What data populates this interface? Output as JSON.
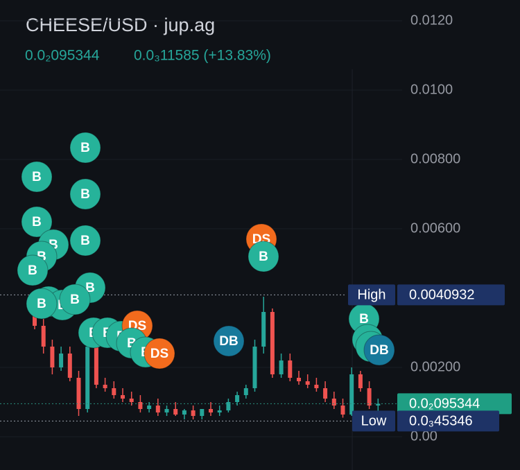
{
  "chart_data": {
    "type": "candlestick",
    "title": "CHEESE/USD · jup.ag",
    "price": "0.0₂095344",
    "change": "0.0₃11585 (+13.83%)",
    "ylim": [
      -0.00096,
      0.0126
    ],
    "yticks": [
      {
        "value": 0.012,
        "label": "0.0120"
      },
      {
        "value": 0.01,
        "label": "0.0100"
      },
      {
        "value": 0.008,
        "label": "0.00800"
      },
      {
        "value": 0.006,
        "label": "0.00600"
      },
      {
        "value": 0.002,
        "label": "0.00200"
      },
      {
        "value": 0,
        "label": "0.00"
      }
    ],
    "up_color": "#26a69a",
    "down_color": "#ef5350",
    "open": [
      0.0038,
      0.0032,
      0.0026,
      0.002,
      0.0024,
      0.0017,
      0.0008,
      0.0026,
      0.0015,
      0.0014,
      0.0012,
      0.0011,
      0.001,
      0.0008,
      0.0009,
      0.0007,
      0.0008,
      0.00064,
      0.00076,
      0.0006,
      0.0008,
      0.0007,
      0.00076,
      0.001,
      0.0012,
      0.0014,
      0.0026,
      0.0036,
      0.0018,
      0.0022,
      0.0017,
      0.0016,
      0.0015,
      0.0014,
      0.0011,
      0.0009,
      0.00064,
      0.0018,
      0.0014,
      0.0009
    ],
    "high": [
      0.0039,
      0.0034,
      0.0028,
      0.0026,
      0.0026,
      0.0019,
      0.0032,
      0.0028,
      0.0017,
      0.0016,
      0.0014,
      0.0013,
      0.0012,
      0.001,
      0.0011,
      0.0009,
      0.001,
      0.0008,
      0.0009,
      0.0008,
      0.001,
      0.0009,
      0.0011,
      0.0013,
      0.0015,
      0.0028,
      0.00404,
      0.0037,
      0.0024,
      0.0024,
      0.0019,
      0.0018,
      0.0017,
      0.0016,
      0.0013,
      0.0011,
      0.002,
      0.0019,
      0.0016,
      0.0011
    ],
    "low": [
      0.0031,
      0.0024,
      0.0018,
      0.0019,
      0.0016,
      0.0006,
      0.0007,
      0.0014,
      0.0013,
      0.0011,
      0.001,
      0.0009,
      0.0007,
      0.0007,
      0.0006,
      0.0006,
      0.0006,
      0.0005,
      0.0005,
      0.0005,
      0.0006,
      0.0006,
      0.0007,
      0.0009,
      0.0011,
      0.0013,
      0.0024,
      0.0017,
      0.0017,
      0.0016,
      0.0015,
      0.0014,
      0.0013,
      0.001,
      0.0008,
      0.00055,
      0.0006,
      0.0013,
      0.0008,
      0.00075
    ],
    "close": [
      0.0032,
      0.0026,
      0.002,
      0.0024,
      0.0017,
      0.0008,
      0.0026,
      0.0015,
      0.0014,
      0.0012,
      0.0011,
      0.001,
      0.0008,
      0.0009,
      0.0007,
      0.0008,
      0.00064,
      0.00076,
      0.0006,
      0.0008,
      0.0007,
      0.00076,
      0.001,
      0.0012,
      0.0014,
      0.0026,
      0.0036,
      0.0018,
      0.0022,
      0.0017,
      0.0016,
      0.0015,
      0.0014,
      0.0011,
      0.0009,
      0.00064,
      0.0018,
      0.0014,
      0.0009,
      0.00095
    ],
    "markers": [
      {
        "label": "B",
        "value": 0.0075
      },
      {
        "label": "B",
        "value": 0.00834
      },
      {
        "label": "B",
        "value": 0.007
      },
      {
        "label": "B",
        "value": 0.0062
      },
      {
        "label": "B",
        "value": 0.00566
      },
      {
        "label": "B",
        "value": 0.00554
      },
      {
        "label": "B",
        "value": 0.0052
      },
      {
        "label": "B",
        "value": 0.0048
      },
      {
        "label": "B",
        "value": 0.0043
      },
      {
        "label": "B",
        "value": 0.0039
      },
      {
        "label": "B",
        "value": 0.0038
      },
      {
        "label": "B",
        "value": 0.00396
      },
      {
        "label": "B",
        "value": 0.00384
      },
      {
        "label": "B",
        "value": 0.003
      },
      {
        "label": "B",
        "value": 0.003
      },
      {
        "label": "B",
        "value": 0.0029
      },
      {
        "label": "DS",
        "value": 0.0032
      },
      {
        "label": "B",
        "value": 0.0027
      },
      {
        "label": "B",
        "value": 0.00244
      },
      {
        "label": "DS",
        "value": 0.0024
      },
      {
        "label": "DB",
        "value": 0.00276
      },
      {
        "label": "DS",
        "value": 0.0057
      },
      {
        "label": "B",
        "value": 0.0052
      },
      {
        "label": "B",
        "value": 0.0034
      },
      {
        "label": "B",
        "value": 0.0028
      },
      {
        "label": "B",
        "value": 0.0026
      },
      {
        "label": "DB",
        "value": 0.0025
      }
    ],
    "high_label": "High",
    "high_value": 0.0040932,
    "high_value_label": "0.0040932",
    "last_value": 0.00095344,
    "last_value_label": "0.0₂095344",
    "low_label": "Low",
    "low_value": 0.00045346,
    "low_value_label": "0.0₃45346"
  }
}
